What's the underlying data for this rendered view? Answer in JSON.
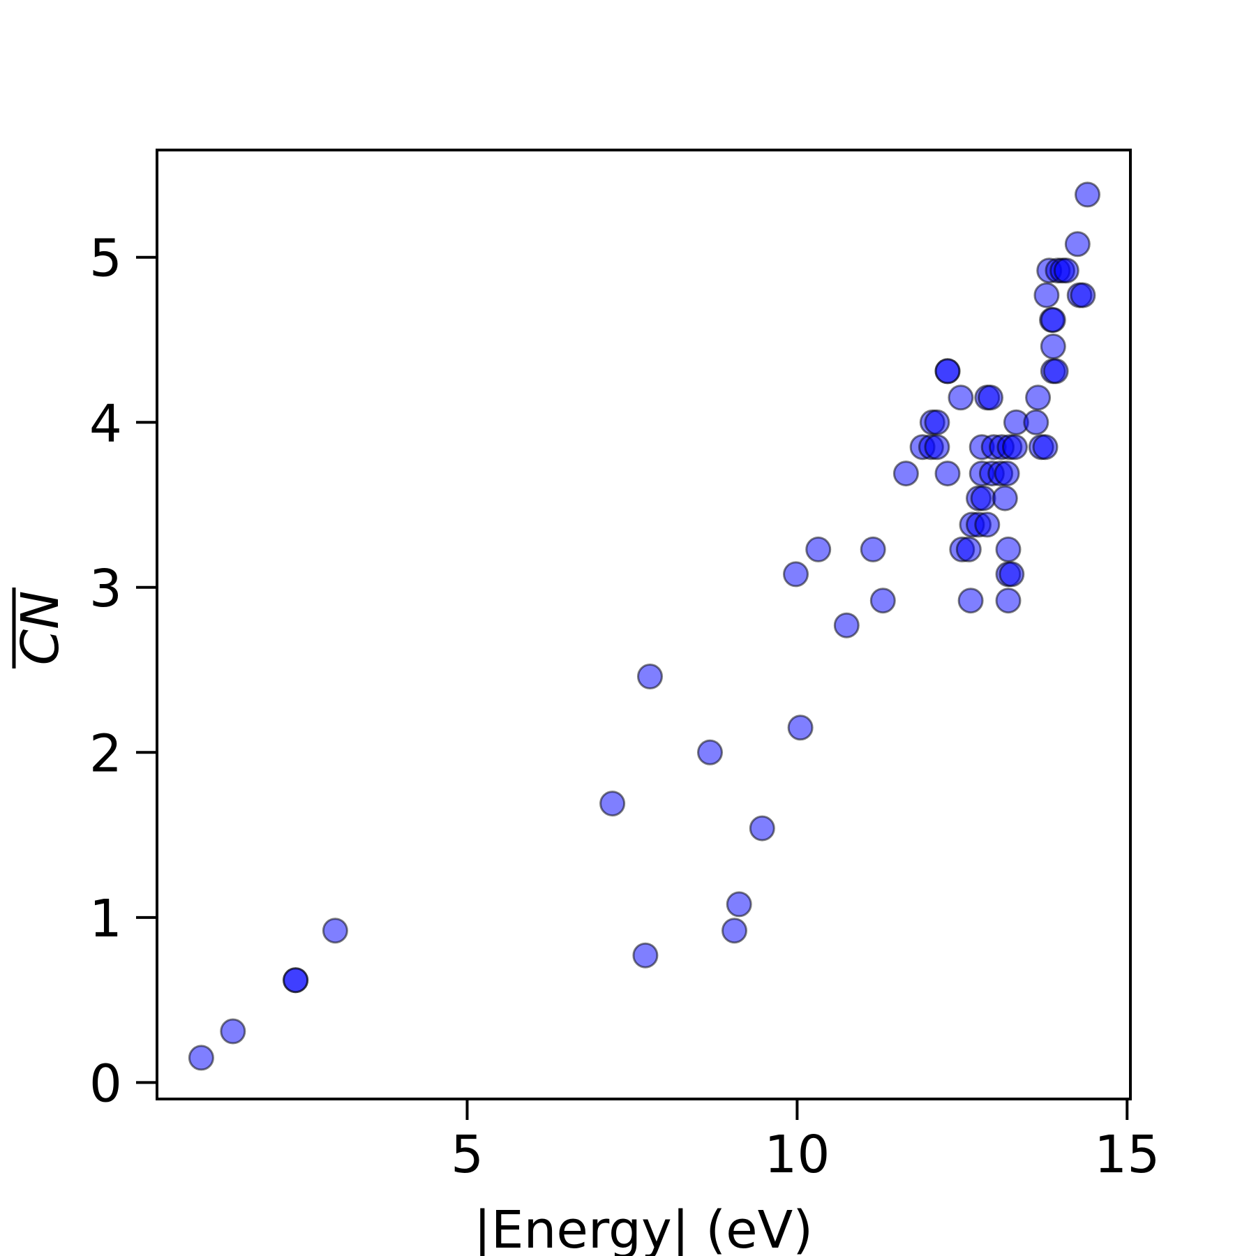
{
  "colors": {
    "marker_fill": "#0000ff",
    "marker_edge": "#000000",
    "axes": "#000000"
  },
  "chart_data": {
    "type": "scatter",
    "title": "",
    "xlabel": "|Energy| (eV)",
    "ylabel": "CN",
    "ylabel_overline": true,
    "xlim": [
      0.3,
      15.05
    ],
    "ylim": [
      -0.1,
      5.65
    ],
    "xticks": [
      5,
      10,
      15
    ],
    "yticks": [
      0,
      1,
      2,
      3,
      4,
      5
    ],
    "grid": false,
    "legend": false,
    "marker_alpha": 0.5,
    "points": [
      {
        "x": 0.97,
        "y": 0.15
      },
      {
        "x": 1.45,
        "y": 0.31
      },
      {
        "x": 2.4,
        "y": 0.62
      },
      {
        "x": 2.4,
        "y": 0.62
      },
      {
        "x": 3.0,
        "y": 0.92
      },
      {
        "x": 7.2,
        "y": 1.69
      },
      {
        "x": 7.7,
        "y": 0.77
      },
      {
        "x": 7.77,
        "y": 2.46
      },
      {
        "x": 8.68,
        "y": 2.0
      },
      {
        "x": 9.05,
        "y": 0.92
      },
      {
        "x": 9.12,
        "y": 1.08
      },
      {
        "x": 9.47,
        "y": 1.54
      },
      {
        "x": 9.98,
        "y": 3.08
      },
      {
        "x": 10.05,
        "y": 2.15
      },
      {
        "x": 10.32,
        "y": 3.23
      },
      {
        "x": 10.75,
        "y": 2.77
      },
      {
        "x": 11.15,
        "y": 3.23
      },
      {
        "x": 11.3,
        "y": 2.92
      },
      {
        "x": 11.65,
        "y": 3.69
      },
      {
        "x": 11.9,
        "y": 3.85
      },
      {
        "x": 12.03,
        "y": 3.85
      },
      {
        "x": 12.12,
        "y": 3.85
      },
      {
        "x": 12.05,
        "y": 4.0
      },
      {
        "x": 12.12,
        "y": 4.0
      },
      {
        "x": 12.28,
        "y": 4.31
      },
      {
        "x": 12.28,
        "y": 4.31
      },
      {
        "x": 12.28,
        "y": 3.69
      },
      {
        "x": 12.48,
        "y": 4.15
      },
      {
        "x": 12.5,
        "y": 3.23
      },
      {
        "x": 12.6,
        "y": 3.23
      },
      {
        "x": 12.63,
        "y": 2.92
      },
      {
        "x": 12.65,
        "y": 3.38
      },
      {
        "x": 12.75,
        "y": 3.38
      },
      {
        "x": 12.75,
        "y": 3.54
      },
      {
        "x": 12.82,
        "y": 3.54
      },
      {
        "x": 12.8,
        "y": 3.69
      },
      {
        "x": 12.8,
        "y": 3.85
      },
      {
        "x": 12.88,
        "y": 3.38
      },
      {
        "x": 12.88,
        "y": 4.15
      },
      {
        "x": 12.93,
        "y": 4.15
      },
      {
        "x": 12.95,
        "y": 3.69
      },
      {
        "x": 12.98,
        "y": 3.85
      },
      {
        "x": 13.08,
        "y": 3.69
      },
      {
        "x": 13.1,
        "y": 3.85
      },
      {
        "x": 13.15,
        "y": 3.54
      },
      {
        "x": 13.18,
        "y": 3.69
      },
      {
        "x": 13.22,
        "y": 3.85
      },
      {
        "x": 13.2,
        "y": 3.23
      },
      {
        "x": 13.2,
        "y": 2.92
      },
      {
        "x": 13.2,
        "y": 3.08
      },
      {
        "x": 13.25,
        "y": 3.08
      },
      {
        "x": 13.3,
        "y": 3.85
      },
      {
        "x": 13.32,
        "y": 4.0
      },
      {
        "x": 13.62,
        "y": 4.0
      },
      {
        "x": 13.65,
        "y": 4.15
      },
      {
        "x": 13.7,
        "y": 3.85
      },
      {
        "x": 13.76,
        "y": 3.85
      },
      {
        "x": 13.78,
        "y": 4.77
      },
      {
        "x": 13.82,
        "y": 4.92
      },
      {
        "x": 13.86,
        "y": 4.62
      },
      {
        "x": 13.88,
        "y": 4.62
      },
      {
        "x": 13.88,
        "y": 4.46
      },
      {
        "x": 13.88,
        "y": 4.31
      },
      {
        "x": 13.92,
        "y": 4.31
      },
      {
        "x": 13.95,
        "y": 4.92
      },
      {
        "x": 14.02,
        "y": 4.92
      },
      {
        "x": 14.08,
        "y": 4.92
      },
      {
        "x": 14.28,
        "y": 4.77
      },
      {
        "x": 14.33,
        "y": 4.77
      },
      {
        "x": 14.25,
        "y": 5.08
      },
      {
        "x": 14.4,
        "y": 5.38
      }
    ]
  }
}
